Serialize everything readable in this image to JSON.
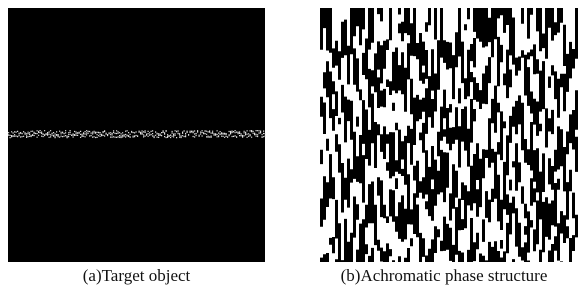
{
  "captions": [
    "(a)Target object",
    "(b)Achromatic phase structure"
  ]
}
